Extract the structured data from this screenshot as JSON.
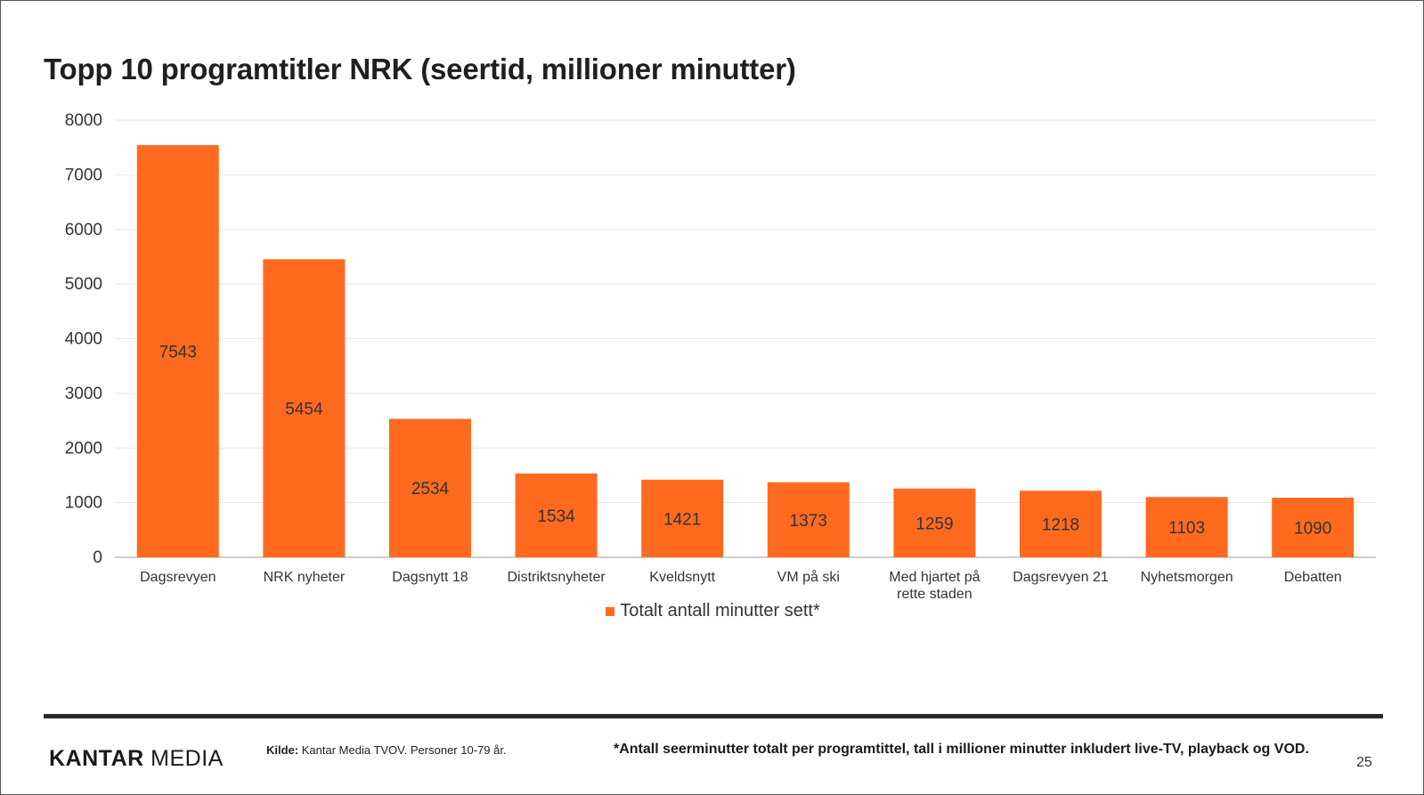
{
  "title": "Topp 10 programtitler NRK (seertid, millioner minutter)",
  "colors": {
    "bar": "#ff6a1f",
    "grid": "#e6e6e6",
    "axis": "#bfbfbf",
    "text": "#333333"
  },
  "chart_data": {
    "type": "bar",
    "categories": [
      [
        "Dagsrevyen"
      ],
      [
        "NRK nyheter"
      ],
      [
        "Dagsnytt 18"
      ],
      [
        "Distriktsnyheter"
      ],
      [
        "Kveldsnytt"
      ],
      [
        "VM på ski"
      ],
      [
        "Med hjartet på",
        "rette staden"
      ],
      [
        "Dagsrevyen 21"
      ],
      [
        "Nyhetsmorgen"
      ],
      [
        "Debatten"
      ]
    ],
    "series": [
      {
        "name": "Totalt antall minutter sett*",
        "values": [
          7543,
          5454,
          2534,
          1534,
          1421,
          1373,
          1259,
          1218,
          1103,
          1090
        ]
      }
    ],
    "ylim": [
      0,
      8000
    ],
    "yticks": [
      0,
      1000,
      2000,
      3000,
      4000,
      5000,
      6000,
      7000,
      8000
    ],
    "grid": true,
    "legend": "bottom",
    "data_labels": "inside-center"
  },
  "legend": {
    "label": "Totalt antall minutter sett*"
  },
  "footer": {
    "logo_part1": "KANTAR",
    "logo_part2": "MEDIA",
    "source_label": "Kilde:",
    "source_text": "Kantar Media TVOV. Personer 10-79 år.",
    "footnote": "*Antall seerminutter totalt per programtittel, tall i millioner minutter inkludert live-TV, playback og VOD.",
    "page_number": "25"
  }
}
